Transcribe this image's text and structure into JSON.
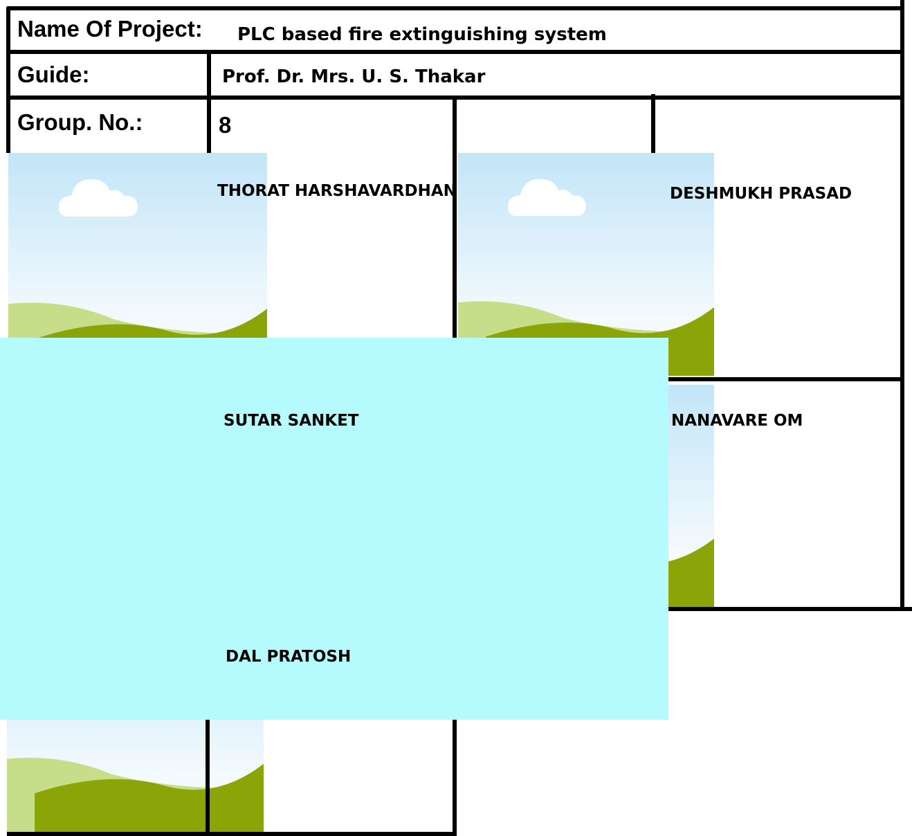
{
  "project": {
    "name_label": "Name Of Project:",
    "name": "PLC based fire extinguishing system",
    "guide_label": "Guide:",
    "guide": "Prof. Dr. Mrs. U. S. Thakar",
    "group_label": "Group. No.:",
    "group": "8"
  },
  "members": [
    "THORAT HARSHAVARDHAN",
    "DESHMUKH PRASAD",
    "SUTAR SANKET",
    "NANAVARE OM",
    "DAL PRATOSH"
  ]
}
